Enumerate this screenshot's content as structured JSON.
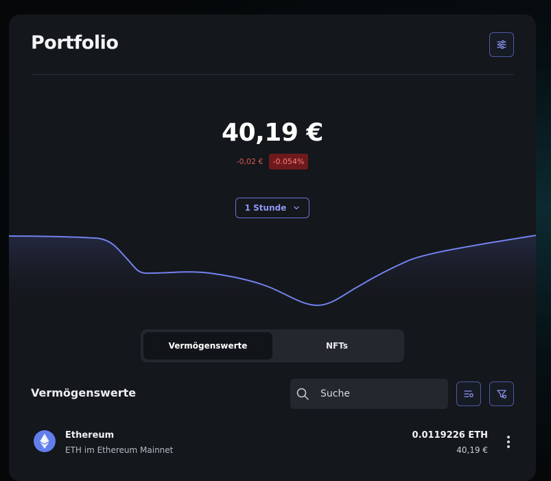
{
  "header": {
    "title": "Portfolio"
  },
  "balance": {
    "total": "40,19 €",
    "change_abs": "-0,02 €",
    "change_pct": "-0.054%"
  },
  "period": {
    "selected": "1 Stunde"
  },
  "tabs": [
    {
      "label": "Vermögenswerte",
      "active": true
    },
    {
      "label": "NFTs",
      "active": false
    }
  ],
  "assets_section": {
    "title": "Vermögenswerte",
    "search_placeholder": "Suche"
  },
  "assets": [
    {
      "name": "Ethereum",
      "network": "ETH im Ethereum Mainnet",
      "amount": "0.0119226 ETH",
      "value": "40,19 €",
      "icon": "ethereum-icon"
    }
  ],
  "colors": {
    "background": "#14171b",
    "accent": "#6b74d6",
    "line": "#7482f0",
    "negative": "#e05b5b",
    "negative_badge_bg": "#6e1a1d"
  }
}
